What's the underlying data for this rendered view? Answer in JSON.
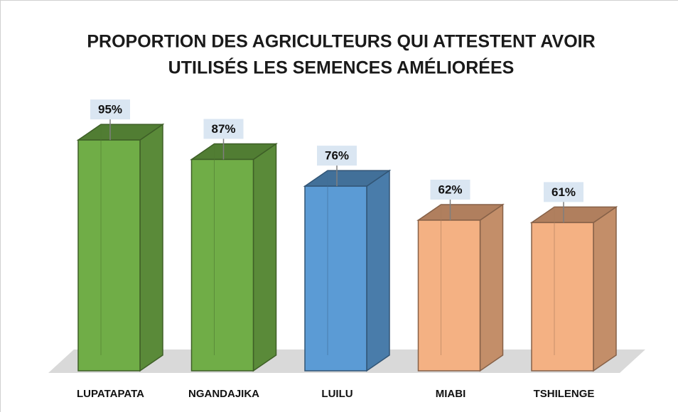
{
  "chart_data": {
    "type": "bar3d",
    "title": [
      "PROPORTION DES AGRICULTEURS QUI ATTESTENT AVOIR",
      "UTILISÉS LES SEMENCES AMÉLIORÉES"
    ],
    "categories": [
      "LUPATAPATA",
      "NGANDAJIKA",
      "LUILU",
      "MIABI",
      "TSHILENGE"
    ],
    "values": [
      95,
      87,
      76,
      62,
      61
    ],
    "value_labels": [
      "95%",
      "87%",
      "76%",
      "62%",
      "61%"
    ],
    "colors": [
      "#70ad47",
      "#70ad47",
      "#5b9bd5",
      "#f4b183",
      "#f4b183"
    ]
  }
}
